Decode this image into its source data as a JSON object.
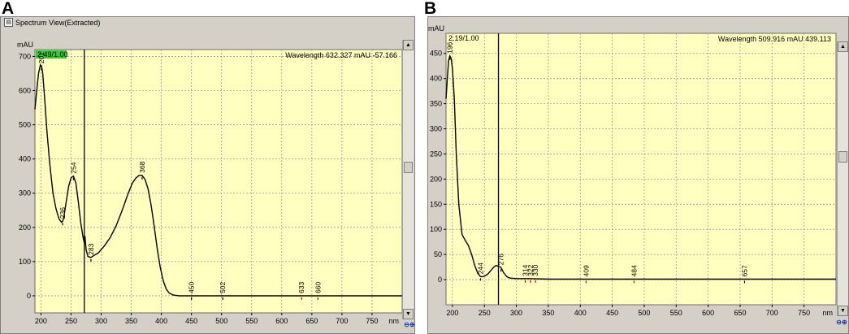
{
  "figure": {
    "letter_a": "A",
    "letter_b": "B"
  },
  "window_a": {
    "title": "Spectrum View(Extracted)",
    "title_icon": "spectrum-window-icon",
    "zoom_icons": "zoom-icons"
  },
  "window_b": {
    "zoom_icons": "zoom-icons"
  },
  "colors": {
    "plot_bg": "#ffffc0",
    "trace": "#000000",
    "cursor": "#000000",
    "grid": "#9a9a9a",
    "ratio_badge": "#33cc33",
    "peak_marker": "#cc0000"
  },
  "chart_data": [
    {
      "type": "line",
      "panel": "A",
      "title": "",
      "ylabel": "mAU",
      "xlabel": "nm",
      "xlim": [
        190,
        800
      ],
      "ylim": [
        -50,
        720
      ],
      "xticks": [
        200,
        250,
        300,
        350,
        400,
        450,
        500,
        550,
        600,
        650,
        700,
        750
      ],
      "yticks": [
        0,
        100,
        200,
        300,
        400,
        500,
        600,
        700
      ],
      "ratio": "2.49/1.00",
      "cursor_x": 272,
      "readout": {
        "wavelength_label": "Wavelength",
        "wavelength": "632.327",
        "unit_label": "mAU",
        "value": "-57.166"
      },
      "grid": true,
      "series": [
        {
          "x": [
            190,
            193,
            196,
            199,
            201,
            203,
            206,
            210,
            215,
            220,
            225,
            230,
            234,
            236,
            238,
            242,
            246,
            250,
            254,
            258,
            262,
            266,
            270,
            272,
            273,
            275,
            278,
            283,
            288,
            295,
            305,
            315,
            325,
            335,
            345,
            352,
            358,
            363,
            368,
            373,
            378,
            383,
            388,
            393,
            398,
            403,
            408,
            413,
            420,
            430,
            450,
            500,
            550,
            600,
            633,
            660,
            700,
            750,
            800
          ],
          "y": [
            545,
            600,
            650,
            675,
            672,
            650,
            580,
            480,
            380,
            300,
            255,
            225,
            215,
            218,
            230,
            275,
            320,
            345,
            350,
            330,
            275,
            215,
            170,
            155,
            175,
            135,
            115,
            112,
            118,
            125,
            145,
            170,
            205,
            250,
            300,
            330,
            345,
            352,
            352,
            340,
            312,
            265,
            205,
            140,
            85,
            45,
            20,
            8,
            2,
            0,
            0,
            0,
            0,
            0,
            0,
            0,
            0,
            0,
            0
          ]
        }
      ],
      "peak_labels": [
        {
          "x": 201,
          "y": 672,
          "label": "201",
          "marker": "black"
        },
        {
          "x": 236,
          "y": 218,
          "label": "236",
          "marker": "black"
        },
        {
          "x": 254,
          "y": 350,
          "label": "254",
          "marker": "black"
        },
        {
          "x": 283,
          "y": 112,
          "label": "283",
          "marker": "black"
        },
        {
          "x": 368,
          "y": 352,
          "label": "368",
          "marker": "black"
        },
        {
          "x": 450,
          "y": 0,
          "label": "450",
          "marker": "black"
        },
        {
          "x": 502,
          "y": 0,
          "label": "502",
          "marker": "black"
        },
        {
          "x": 633,
          "y": 0,
          "label": "633",
          "marker": "red"
        },
        {
          "x": 660,
          "y": 0,
          "label": "660",
          "marker": "red"
        }
      ]
    },
    {
      "type": "line",
      "panel": "B",
      "title": "",
      "ylabel": "mAU",
      "xlabel": "nm",
      "xlim": [
        190,
        800
      ],
      "ylim": [
        -50,
        490
      ],
      "xticks": [
        200,
        250,
        300,
        350,
        400,
        450,
        500,
        550,
        600,
        650,
        700,
        750
      ],
      "yticks": [
        0,
        50,
        100,
        150,
        200,
        250,
        300,
        350,
        400,
        450
      ],
      "ratio": "2.19/1.00",
      "cursor_x": 272,
      "readout": {
        "wavelength_label": "Wavelength",
        "wavelength": "509.916",
        "unit_label": "mAU",
        "value": "439.113"
      },
      "grid": true,
      "series": [
        {
          "x": [
            190,
            192,
            194,
            196,
            198,
            200,
            203,
            206,
            210,
            215,
            220,
            225,
            230,
            235,
            240,
            244,
            248,
            252,
            256,
            260,
            264,
            268,
            272,
            276,
            280,
            285,
            290,
            300,
            310,
            320,
            350,
            400,
            500,
            600,
            700,
            800
          ],
          "y": [
            360,
            400,
            435,
            445,
            440,
            420,
            360,
            250,
            150,
            90,
            78,
            68,
            50,
            28,
            12,
            6,
            6,
            8,
            12,
            18,
            24,
            28,
            27,
            24,
            14,
            6,
            3,
            2,
            2,
            2,
            1,
            1,
            1,
            1,
            1,
            1
          ]
        }
      ],
      "peak_labels": [
        {
          "x": 196,
          "y": 445,
          "label": "196",
          "marker": "black"
        },
        {
          "x": 244,
          "y": 6,
          "label": "244",
          "marker": "black"
        },
        {
          "x": 276,
          "y": 24,
          "label": "276",
          "marker": "black"
        },
        {
          "x": 314,
          "y": 2,
          "label": "314",
          "marker": "red"
        },
        {
          "x": 322,
          "y": 2,
          "label": "322",
          "marker": "red"
        },
        {
          "x": 330,
          "y": 2,
          "label": "330",
          "marker": "red"
        },
        {
          "x": 409,
          "y": 1,
          "label": "409",
          "marker": "red"
        },
        {
          "x": 484,
          "y": 1,
          "label": "484",
          "marker": "red"
        },
        {
          "x": 657,
          "y": 1,
          "label": "657",
          "marker": "black"
        }
      ]
    }
  ]
}
